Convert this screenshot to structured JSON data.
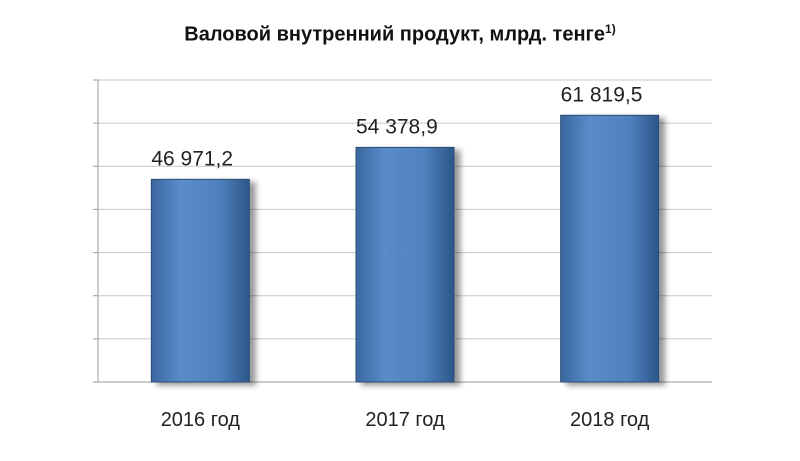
{
  "chart_data": {
    "type": "bar",
    "title": "Валовой внутренний продукт, млрд. тенге",
    "title_superscript": "1)",
    "categories": [
      "2016 год",
      "2017 год",
      "2018 год"
    ],
    "values": [
      46971.2,
      54378.9,
      61819.5
    ],
    "data_labels": [
      "46 971,2",
      "54 378,9",
      "61 819,5"
    ],
    "ylim": [
      0,
      70000
    ],
    "y_gridline_step": 10000,
    "grid": true,
    "bar_color": "#4f81bd",
    "bar_edge_color": "#2c4d75"
  }
}
